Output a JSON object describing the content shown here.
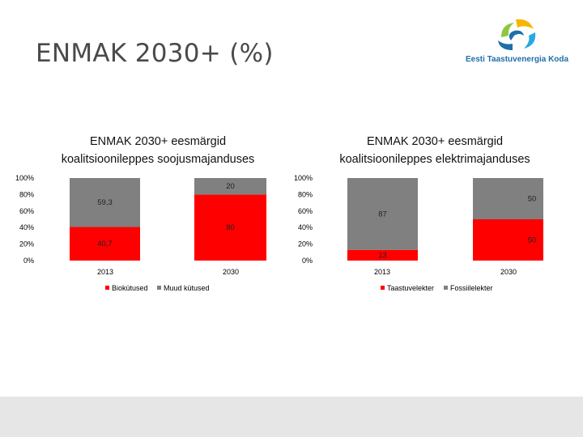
{
  "slide": {
    "title": "ENMAK 2030+ (%)",
    "logo_text": "Eesti Taastuvenergia Koda"
  },
  "colors": {
    "red": "#ff0000",
    "gray": "#808080",
    "logo_blue": "#1e6fa8",
    "logo_green": "#8dc63f",
    "logo_yellow": "#f7b500",
    "logo_cyan": "#2aa8e0"
  },
  "chart_data": [
    {
      "type": "bar",
      "stacked": true,
      "title_line1": "ENMAK 2030+ eesmärgid",
      "title_line2": "koalitsioonileppes soojusmajanduses",
      "categories": [
        "2013",
        "2030"
      ],
      "series": [
        {
          "name": "Biokütused",
          "values": [
            40.7,
            80
          ],
          "labels": [
            "40,7",
            "80"
          ],
          "color": "#ff0000"
        },
        {
          "name": "Muud kütused",
          "values": [
            59.3,
            20
          ],
          "labels": [
            "59,3",
            "20"
          ],
          "color": "#808080"
        }
      ],
      "ylim": [
        0,
        100
      ],
      "yticks": [
        "0%",
        "20%",
        "40%",
        "60%",
        "80%",
        "100%"
      ],
      "legend": "bottom"
    },
    {
      "type": "bar",
      "stacked": true,
      "title_line1": "ENMAK 2030+ eesmärgid",
      "title_line2": "koalitsioonileppes elektrimajanduses",
      "categories": [
        "2013",
        "2030"
      ],
      "series": [
        {
          "name": "Taastuvelekter",
          "values": [
            13,
            50
          ],
          "labels": [
            "13",
            "50"
          ],
          "color": "#ff0000"
        },
        {
          "name": "Fossiilelekter",
          "values": [
            87,
            50
          ],
          "labels": [
            "87",
            "50"
          ],
          "color": "#808080"
        }
      ],
      "ylim": [
        0,
        100
      ],
      "yticks": [
        "0%",
        "20%",
        "40%",
        "60%",
        "80%",
        "100%"
      ],
      "legend": "bottom"
    }
  ]
}
